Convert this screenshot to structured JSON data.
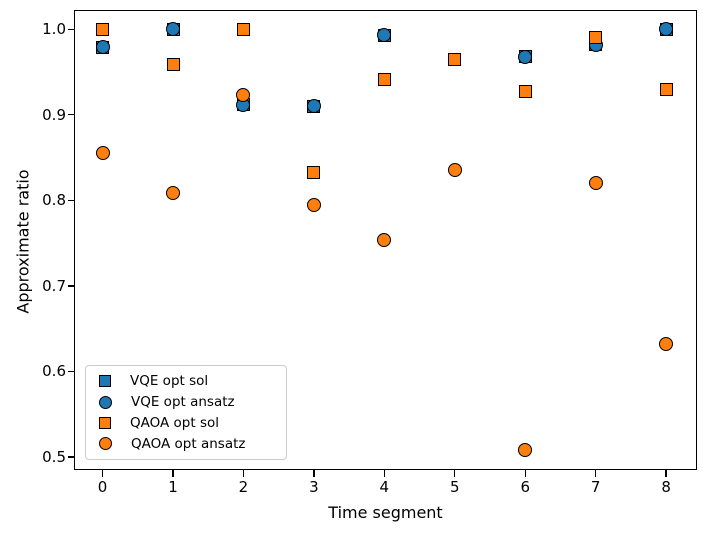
{
  "figure": {
    "xlabel": "Time segment",
    "ylabel": "Approximate ratio"
  },
  "chart_data": {
    "type": "scatter",
    "title": "",
    "xlabel": "Time segment",
    "ylabel": "Approximate ratio",
    "xlim": [
      -0.4,
      8.43
    ],
    "ylim": [
      0.485,
      1.022
    ],
    "grid": false,
    "legend_position": "lower left",
    "background_color": "#ffffff",
    "marker_edge_color": "#000000",
    "x_ticks": [
      {
        "value": 0,
        "label": "0"
      },
      {
        "value": 1,
        "label": "1"
      },
      {
        "value": 2,
        "label": "2"
      },
      {
        "value": 3,
        "label": "3"
      },
      {
        "value": 4,
        "label": "4"
      },
      {
        "value": 5,
        "label": "5"
      },
      {
        "value": 6,
        "label": "6"
      },
      {
        "value": 7,
        "label": "7"
      },
      {
        "value": 8,
        "label": "8"
      }
    ],
    "y_ticks": [
      {
        "value": 0.5,
        "label": "0.5"
      },
      {
        "value": 0.6,
        "label": "0.6"
      },
      {
        "value": 0.7,
        "label": "0.7"
      },
      {
        "value": 0.8,
        "label": "0.8"
      },
      {
        "value": 0.9,
        "label": "0.9"
      },
      {
        "value": 1.0,
        "label": "1.0"
      }
    ],
    "x": [
      0,
      1,
      2,
      3,
      4,
      5,
      6,
      7,
      8
    ],
    "series": [
      {
        "name": "VQE opt sol",
        "marker": "square",
        "color": "#1f77b4",
        "values": [
          0.979,
          1.0,
          0.912,
          0.91,
          0.993,
          null,
          0.968,
          0.982,
          1.0
        ]
      },
      {
        "name": "VQE opt ansatz",
        "marker": "circle",
        "color": "#1f77b4",
        "values": [
          0.979,
          1.0,
          0.911,
          0.91,
          0.993,
          null,
          0.968,
          0.982,
          1.0
        ]
      },
      {
        "name": "QAOA opt sol",
        "marker": "square",
        "color": "#ff7f0e",
        "values": [
          1.0,
          0.959,
          1.0,
          0.833,
          0.941,
          0.965,
          0.927,
          0.99,
          0.93
        ]
      },
      {
        "name": "QAOA opt ansatz",
        "marker": "circle",
        "color": "#ff7f0e",
        "values": [
          0.855,
          0.809,
          0.923,
          0.795,
          0.754,
          0.836,
          0.508,
          0.82,
          0.632
        ]
      }
    ]
  }
}
